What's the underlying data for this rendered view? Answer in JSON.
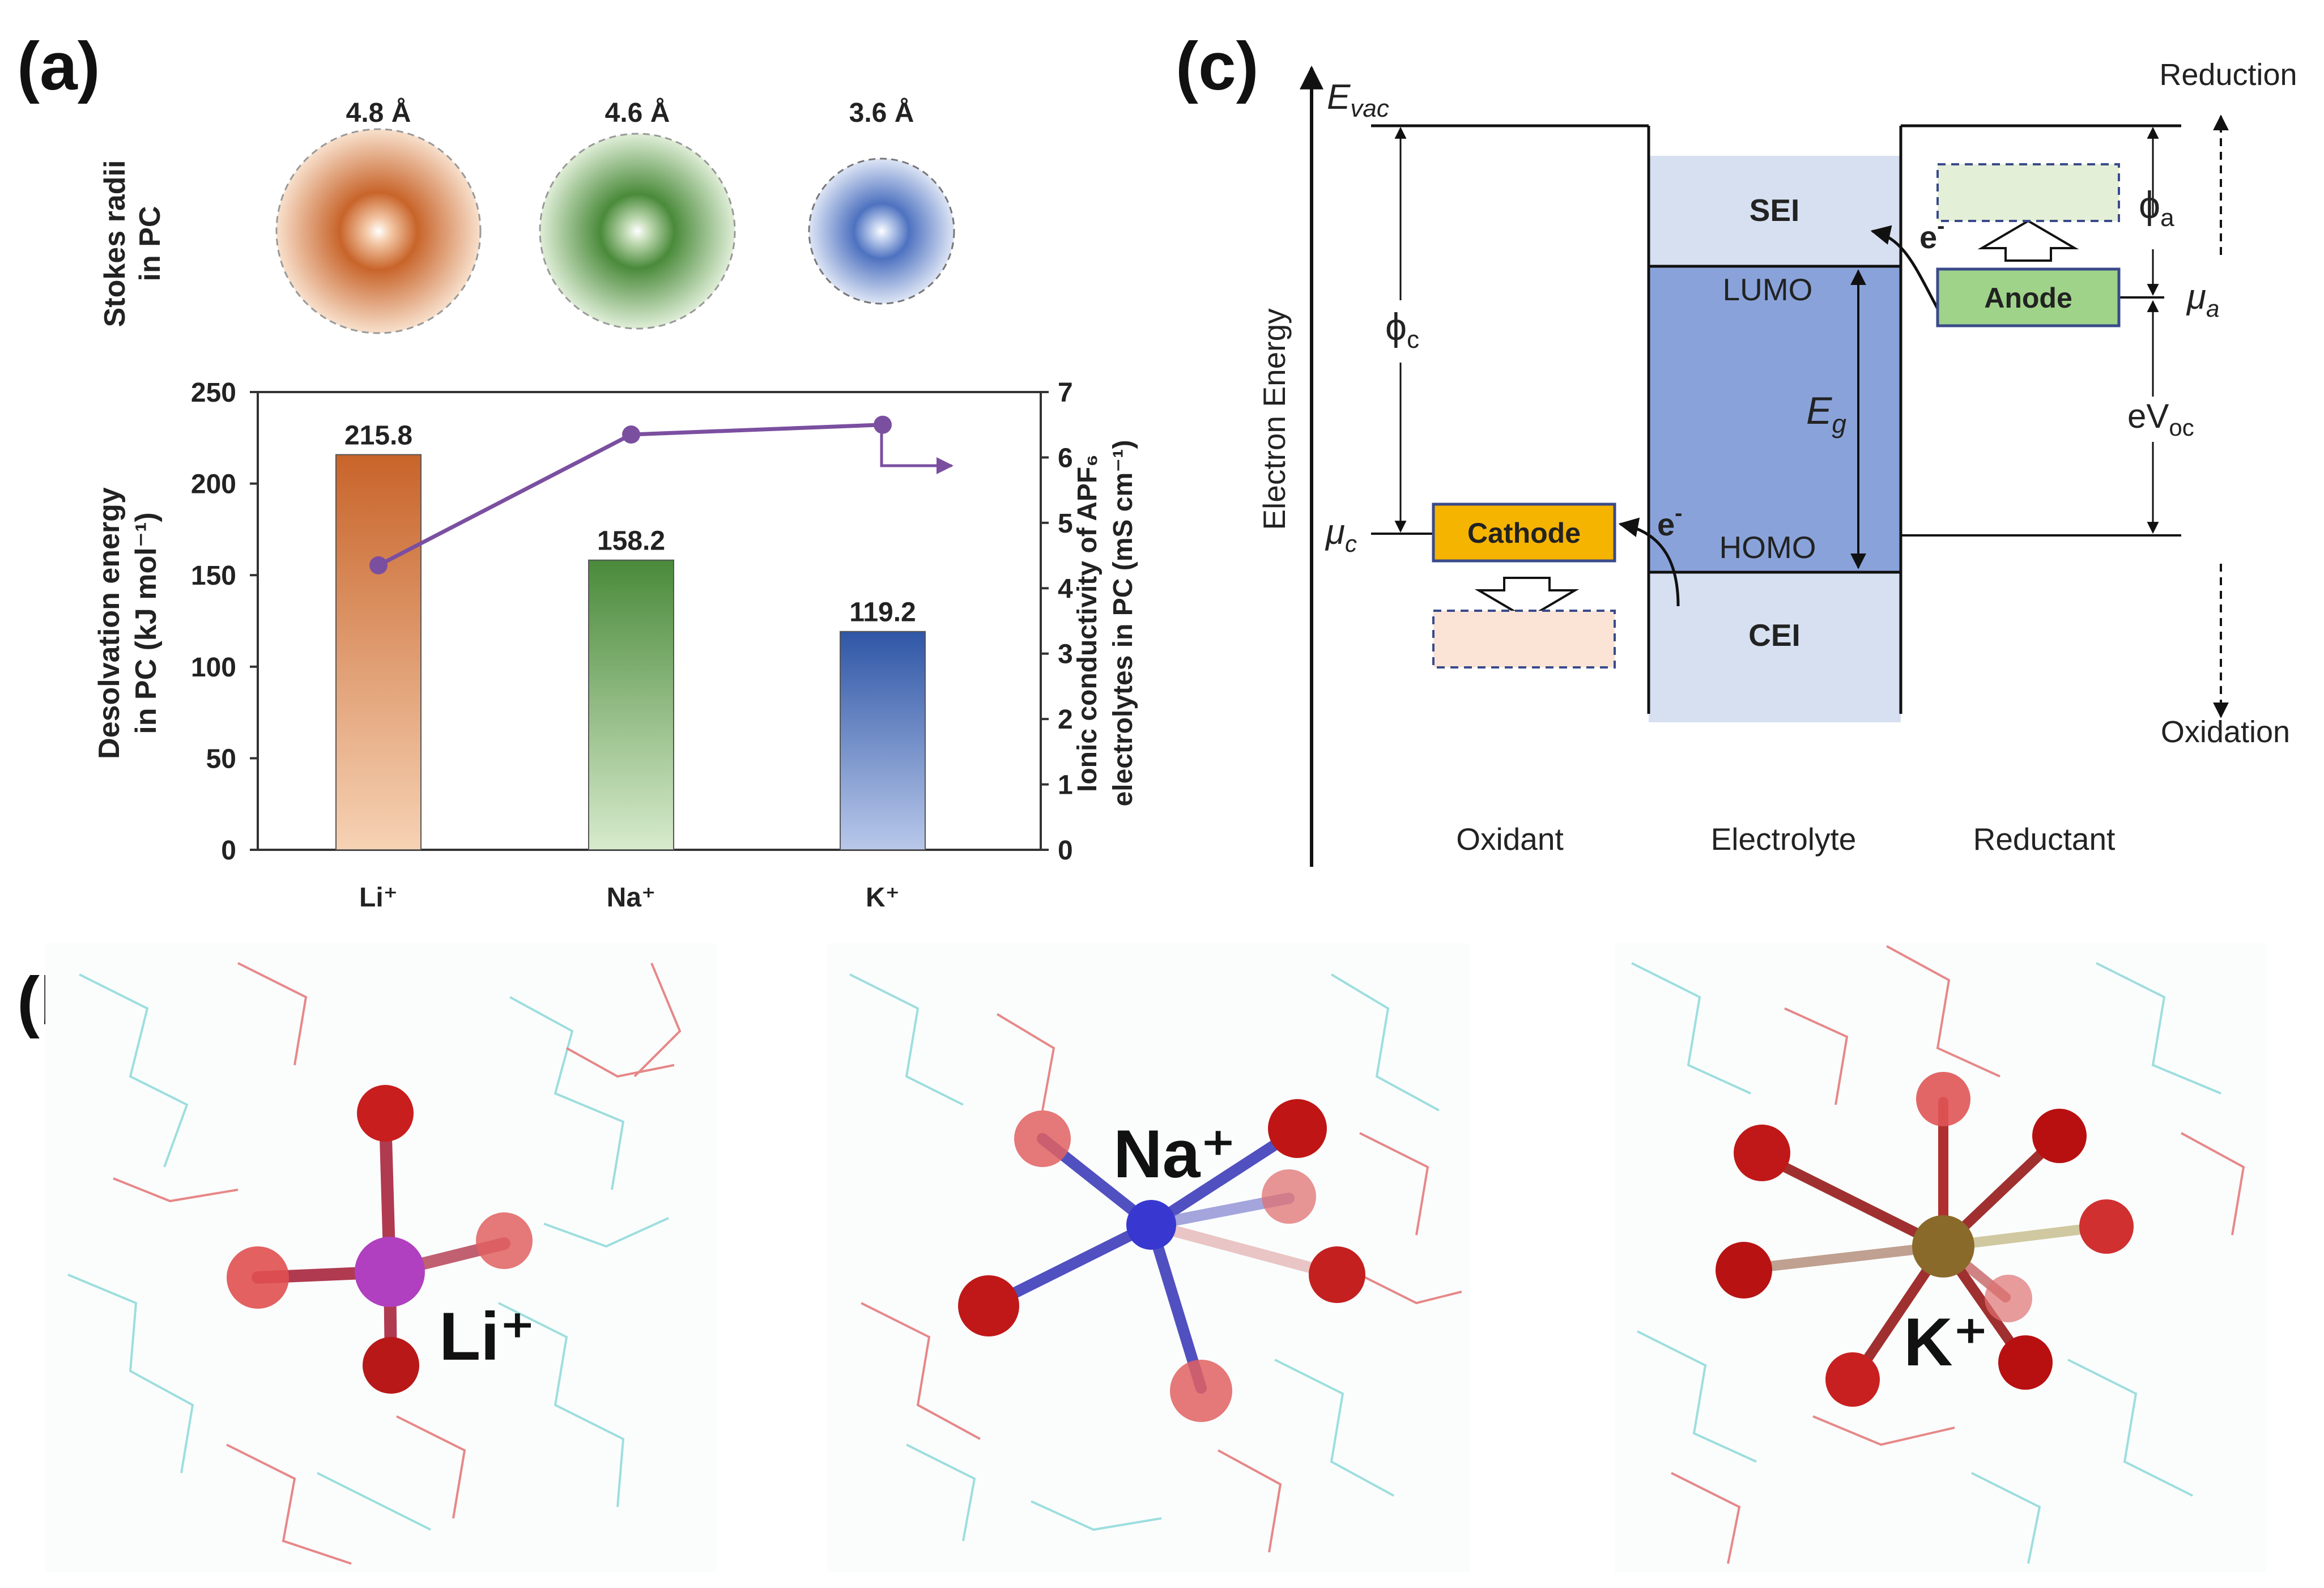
{
  "panels": {
    "a": "(a)",
    "b": "(b)",
    "c": "(c)"
  },
  "stokes": {
    "title_line1": "Stokes radii",
    "title_line2": "in PC",
    "ions": [
      {
        "label": "4.8 Å",
        "radius_angstrom": 4.8,
        "color": "#c8642a"
      },
      {
        "label": "4.6 Å",
        "radius_angstrom": 4.6,
        "color": "#4a8a3a"
      },
      {
        "label": "3.6 Å",
        "radius_angstrom": 3.6,
        "color": "#4e72c0"
      }
    ]
  },
  "chart_data": {
    "type": "bar",
    "categories": [
      "Li⁺",
      "Na⁺",
      "K⁺"
    ],
    "series": [
      {
        "name": "Desolvation energy in PC",
        "axis": "left",
        "type": "bar",
        "values": [
          215.8,
          158.2,
          119.2
        ],
        "value_labels": [
          "215.8",
          "158.2",
          "119.2"
        ],
        "colors": [
          "#c8642a",
          "#4a8a3a",
          "#3a5fae"
        ]
      },
      {
        "name": "Ionic conductivity of APF6 electrolytes in PC",
        "axis": "right",
        "type": "line",
        "values": [
          4.35,
          6.35,
          6.5
        ],
        "color": "#7b4fa0"
      }
    ],
    "ylabel_left_line1": "Desolvation energy",
    "ylabel_left_line2": "in PC (kJ mol⁻¹)",
    "ylabel_right_line1": "Ionic conductivity of APF₆",
    "ylabel_right_line2": "electrolytes in PC (mS cm⁻¹)",
    "ylim_left": [
      0,
      250
    ],
    "ylim_right": [
      0,
      7
    ],
    "yticks_left": [
      "0",
      "50",
      "100",
      "150",
      "200",
      "250"
    ],
    "yticks_right": [
      "0",
      "1",
      "2",
      "3",
      "4",
      "5",
      "6",
      "7"
    ]
  },
  "molecules": {
    "li": "Li⁺",
    "na": "Na⁺",
    "k": "K⁺"
  },
  "diagram": {
    "evac": "E",
    "evac_sub": "vac",
    "reduction": "Reduction",
    "oxidation": "Oxidation",
    "electron_energy": "Electron  Energy",
    "phi_c": "ϕ",
    "phi_c_sub": "c",
    "phi_a": "ϕ",
    "phi_a_sub": "a",
    "mu_c": "μ",
    "mu_c_sub": "c",
    "mu_a": "μ",
    "mu_a_sub": "a",
    "sei": "SEI",
    "cei": "CEI",
    "lumo": "LUMO",
    "homo": "HOMO",
    "eg": "E",
    "eg_sub": "g",
    "cathode": "Cathode",
    "anode": "Anode",
    "e_minus": "e",
    "e_minus_sup": "-",
    "evoc": "eV",
    "evoc_sub": "oc",
    "oxidant": "Oxidant",
    "electrolyte": "Electrolyte",
    "reductant": "Reductant"
  },
  "colors": {
    "orange": "#c8642a",
    "green": "#4a8a3a",
    "blue": "#3a5fae",
    "purple": "#7b4fa0",
    "electrolyte": "#89a3da",
    "interphase": "#d6e0f1",
    "cathode": "#f5b400",
    "anode": "#9fd38a"
  }
}
